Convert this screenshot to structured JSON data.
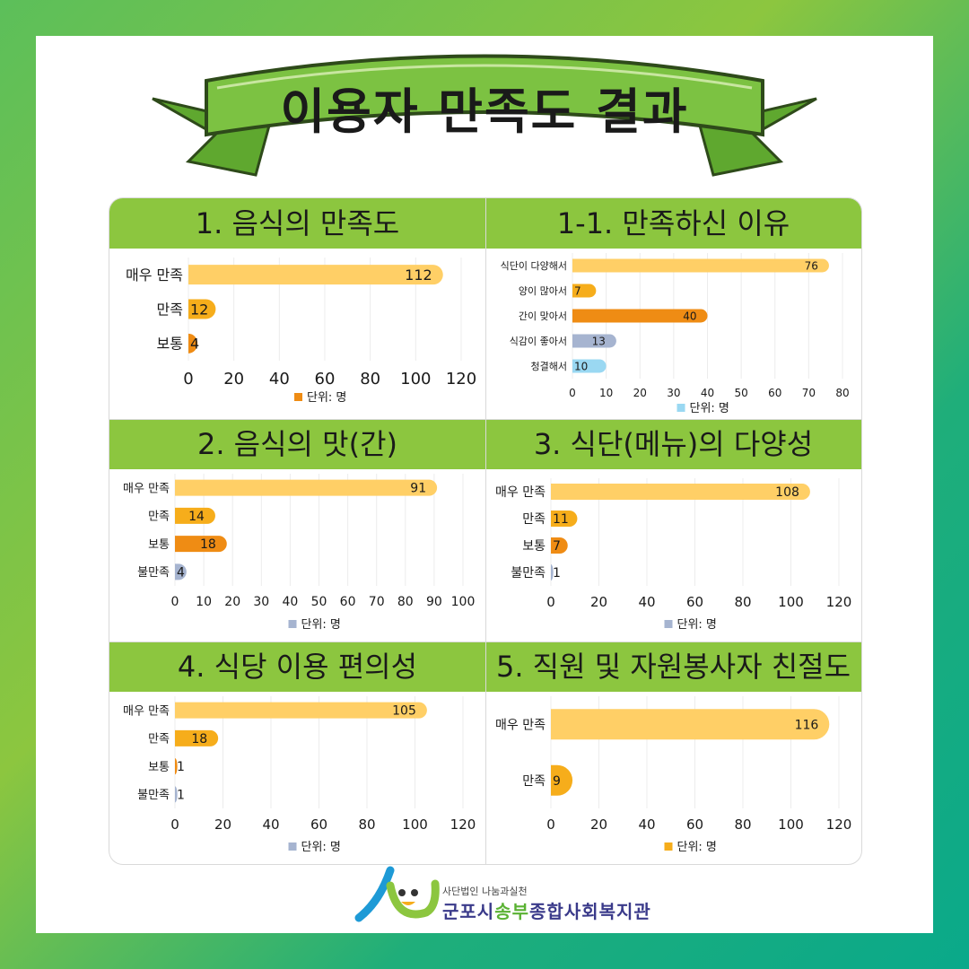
{
  "title": "이용자 만족도 결과",
  "footer": {
    "org_small": "사단법인 나눔과실천",
    "org_name_a": "군포시",
    "org_name_b": "송부",
    "org_name_c": "종합사회복지관"
  },
  "colors": {
    "banner_green": "#7cc242",
    "header_green": "#8cc63f",
    "bar_light_orange": "#ffcf66",
    "bar_orange": "#f6ad1b",
    "bar_dark_orange": "#ef8c14",
    "bar_gray_blue": "#a6b4d0",
    "bar_light_blue": "#9ad8f2"
  },
  "chart_data": [
    {
      "type": "bar",
      "orientation": "horizontal",
      "title": "1. 음식의 만족도",
      "categories": [
        "매우 만족",
        "만족",
        "보통"
      ],
      "values": [
        112,
        12,
        4
      ],
      "bar_colors": [
        "#ffcf66",
        "#f6ad1b",
        "#ef8c14"
      ],
      "xlim": [
        0,
        120
      ],
      "ticks": [
        0,
        20,
        40,
        60,
        80,
        100,
        120
      ],
      "legend": "단위: 명",
      "legend_color": "#ef8c14"
    },
    {
      "type": "bar",
      "orientation": "horizontal",
      "title": "1-1. 만족하신 이유",
      "categories": [
        "식단이 다양해서",
        "양이 많아서",
        "간이 맞아서",
        "식감이 좋아서",
        "청결해서"
      ],
      "values": [
        76,
        7,
        40,
        13,
        10
      ],
      "bar_colors": [
        "#ffcf66",
        "#f6ad1b",
        "#ef8c14",
        "#a6b4d0",
        "#9ad8f2"
      ],
      "xlim": [
        0,
        80
      ],
      "ticks": [
        0,
        10,
        20,
        30,
        40,
        50,
        60,
        70,
        80
      ],
      "legend": "단위: 명",
      "legend_color": "#9ad8f2"
    },
    {
      "type": "bar",
      "orientation": "horizontal",
      "title": "2. 음식의 맛(간)",
      "categories": [
        "매우 만족",
        "만족",
        "보통",
        "불만족"
      ],
      "values": [
        91,
        14,
        18,
        4
      ],
      "bar_colors": [
        "#ffcf66",
        "#f6ad1b",
        "#ef8c14",
        "#a6b4d0"
      ],
      "xlim": [
        0,
        100
      ],
      "ticks": [
        0,
        10,
        20,
        30,
        40,
        50,
        60,
        70,
        80,
        90,
        100
      ],
      "legend": "단위: 명",
      "legend_color": "#a6b4d0"
    },
    {
      "type": "bar",
      "orientation": "horizontal",
      "title": "3. 식단(메뉴)의 다양성",
      "categories": [
        "매우 만족",
        "만족",
        "보통",
        "불만족"
      ],
      "values": [
        108,
        11,
        7,
        1
      ],
      "bar_colors": [
        "#ffcf66",
        "#f6ad1b",
        "#ef8c14",
        "#a6b4d0"
      ],
      "xlim": [
        0,
        120
      ],
      "ticks": [
        0,
        20,
        40,
        60,
        80,
        100,
        120
      ],
      "legend": "단위: 명",
      "legend_color": "#a6b4d0"
    },
    {
      "type": "bar",
      "orientation": "horizontal",
      "title": "4. 식당 이용 편의성",
      "categories": [
        "매우 만족",
        "만족",
        "보통",
        "불만족"
      ],
      "values": [
        105,
        18,
        1,
        1
      ],
      "bar_colors": [
        "#ffcf66",
        "#f6ad1b",
        "#ef8c14",
        "#a6b4d0"
      ],
      "xlim": [
        0,
        120
      ],
      "ticks": [
        0,
        20,
        40,
        60,
        80,
        100,
        120
      ],
      "legend": "단위: 명",
      "legend_color": "#a6b4d0"
    },
    {
      "type": "bar",
      "orientation": "horizontal",
      "title": "5. 직원 및 자원봉사자 친절도",
      "categories": [
        "매우 만족",
        "만족"
      ],
      "values": [
        116,
        9
      ],
      "bar_colors": [
        "#ffcf66",
        "#f6ad1b"
      ],
      "xlim": [
        0,
        120
      ],
      "ticks": [
        0,
        20,
        40,
        60,
        80,
        100,
        120
      ],
      "legend": "단위: 명",
      "legend_color": "#f6ad1b"
    }
  ]
}
